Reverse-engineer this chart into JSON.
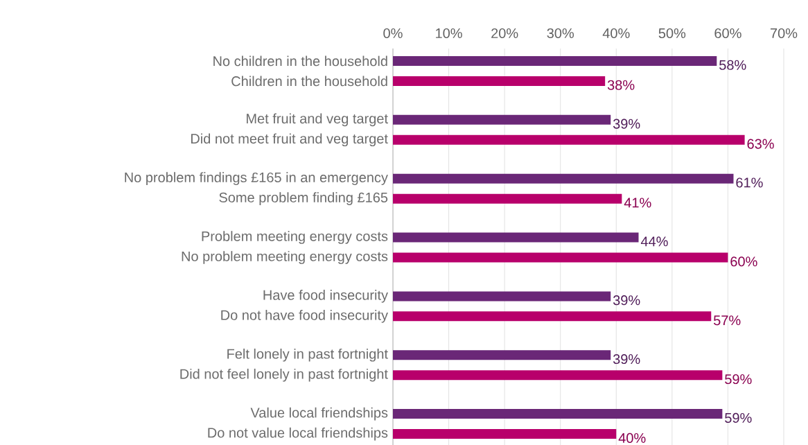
{
  "chart_data": {
    "type": "bar",
    "orientation": "horizontal",
    "categories": [
      "No children in the household",
      "Children in the household",
      "Met fruit and veg target",
      "Did not meet fruit and veg target",
      "No problem findings £165 in an emergency",
      "Some problem finding £165",
      "Problem meeting energy costs",
      "No problem meeting energy costs",
      "Have food insecurity",
      "Do not have food insecurity",
      "Felt lonely in past fortnight",
      "Did not feel lonely in past fortnight",
      "Value local friendships",
      "Do not value local friendships"
    ],
    "values": [
      58,
      38,
      39,
      63,
      61,
      41,
      44,
      60,
      39,
      57,
      39,
      59,
      59,
      40
    ],
    "value_labels": [
      "58%",
      "38%",
      "39%",
      "63%",
      "61%",
      "41%",
      "44%",
      "60%",
      "39%",
      "57%",
      "39%",
      "59%",
      "59%",
      "40%"
    ],
    "colors": [
      "#6a2777",
      "#b8006b",
      "#6a2777",
      "#b8006b",
      "#6a2777",
      "#b8006b",
      "#6a2777",
      "#b8006b",
      "#6a2777",
      "#b8006b",
      "#6a2777",
      "#b8006b",
      "#6a2777",
      "#b8006b"
    ],
    "xlim": [
      0,
      70
    ],
    "xticks": [
      {
        "value": 0,
        "label": "0%"
      },
      {
        "value": 10,
        "label": "10%"
      },
      {
        "value": 20,
        "label": "20%"
      },
      {
        "value": 30,
        "label": "30%"
      },
      {
        "value": 40,
        "label": "40%"
      },
      {
        "value": 50,
        "label": "50%"
      },
      {
        "value": 60,
        "label": "60%"
      },
      {
        "value": 70,
        "label": "70%"
      }
    ],
    "grid": "x"
  }
}
